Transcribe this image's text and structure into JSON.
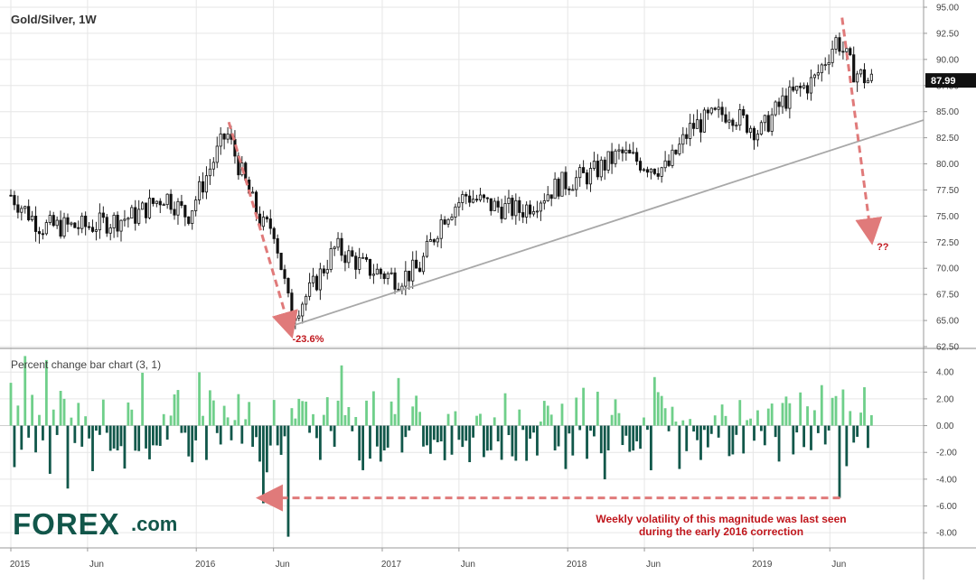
{
  "chart_data": [
    {
      "type": "candlestick",
      "title": "Gold/Silver, 1W",
      "last_price_label": "87.99",
      "last_price": 87.99,
      "ylim": [
        62.5,
        95.0
      ],
      "y_ticks": [
        "95.00",
        "92.50",
        "90.00",
        "87.50",
        "85.00",
        "82.50",
        "80.00",
        "77.50",
        "75.00",
        "72.50",
        "70.00",
        "67.50",
        "65.00",
        "62.50"
      ],
      "x_ticks": [
        "2015",
        "Jun",
        "2016",
        "Jun",
        "2017",
        "Jun",
        "2018",
        "Jun",
        "2019",
        "Jun"
      ],
      "x_range": [
        "2015-01-01",
        "2019-09-01"
      ],
      "anchors": [
        [
          "2015-01-01",
          77.0
        ],
        [
          "2015-03-01",
          74.0
        ],
        [
          "2015-06-01",
          74.0
        ],
        [
          "2015-09-01",
          75.0
        ],
        [
          "2015-11-01",
          77.0
        ],
        [
          "2015-12-15",
          75.0
        ],
        [
          "2016-02-20",
          82.0
        ],
        [
          "2016-03-01",
          83.0
        ],
        [
          "2016-04-15",
          77.0
        ],
        [
          "2016-05-10",
          74.0
        ],
        [
          "2016-06-01",
          74.0
        ],
        [
          "2016-07-05",
          65.5
        ],
        [
          "2016-08-15",
          68.0
        ],
        [
          "2016-10-01",
          72.0
        ],
        [
          "2016-12-01",
          70.0
        ],
        [
          "2017-02-01",
          69.0
        ],
        [
          "2017-03-15",
          70.0
        ],
        [
          "2017-05-01",
          75.0
        ],
        [
          "2017-06-15",
          77.0
        ],
        [
          "2017-08-01",
          76.0
        ],
        [
          "2017-10-01",
          75.5
        ],
        [
          "2017-12-15",
          78.0
        ],
        [
          "2018-02-15",
          79.0
        ],
        [
          "2018-04-15",
          81.0
        ],
        [
          "2018-06-01",
          80.0
        ],
        [
          "2018-07-15",
          79.5
        ],
        [
          "2018-09-01",
          83.5
        ],
        [
          "2018-10-15",
          84.5
        ],
        [
          "2018-11-15",
          85.0
        ],
        [
          "2019-01-15",
          83.0
        ],
        [
          "2019-03-01",
          86.0
        ],
        [
          "2019-05-01",
          88.0
        ],
        [
          "2019-06-15",
          92.0
        ],
        [
          "2019-07-15",
          89.0
        ],
        [
          "2019-08-15",
          88.0
        ]
      ],
      "trendline": {
        "from": [
          "2016-07-08",
          64.5
        ],
        "to": [
          "2019-09-05",
          83.0
        ]
      },
      "arrows": [
        {
          "from": [
            "2016-03-05",
            84.0
          ],
          "to": [
            "2016-07-01",
            64.5
          ]
        },
        {
          "from": [
            "2019-06-25",
            94.0
          ],
          "to": [
            "2019-08-20",
            73.5
          ]
        }
      ],
      "annotations": [
        {
          "text": "-23.6%",
          "at": [
            "2016-07-01",
            63.2
          ]
        },
        {
          "text": "??",
          "at": [
            "2019-08-25",
            72.0
          ]
        }
      ]
    },
    {
      "type": "bar",
      "title": "Percent change bar chart (3, 1)",
      "ylim": [
        -9.0,
        5.5
      ],
      "y_ticks": [
        "4.00",
        "2.00",
        "0.00",
        "-2.00",
        "-4.00",
        "-6.00",
        "-8.00"
      ],
      "positive_color": "#6fcf8a",
      "negative_color": "#11574a",
      "seed_values": [
        3.2,
        -3.1,
        1.5,
        -1.8,
        5.2,
        -0.9,
        2.3,
        -2.0,
        0.8,
        -1.1,
        4.9,
        -3.6,
        1.2,
        -0.7,
        2.6,
        2.0,
        -4.7,
        0.6,
        -1.3,
        1.7
      ],
      "peaks": [
        {
          "date": "2016-05-13",
          "value": -5.8
        },
        {
          "date": "2016-07-01",
          "value": -8.3
        },
        {
          "date": "2016-10-14",
          "value": 4.5
        },
        {
          "date": "2019-06-21",
          "value": -5.4
        },
        {
          "date": "2019-06-28",
          "value": 2.7
        }
      ],
      "arrow": {
        "from": [
          "2019-06-21",
          -5.4
        ],
        "to": [
          "2016-05-13",
          -5.4
        ]
      },
      "annotation": [
        "Weekly volatility of this magnitude was last seen",
        "during the early 2016 correction"
      ]
    }
  ],
  "brand": {
    "logo_text": "FOREX",
    "logo_suffix": ".com"
  },
  "colors": {
    "up": "#6fcf8a",
    "down": "#11574a",
    "red": "#c0161c",
    "arrow": "#e07a7a",
    "trend": "#a8a8a8",
    "grid": "#e6e6e6"
  }
}
